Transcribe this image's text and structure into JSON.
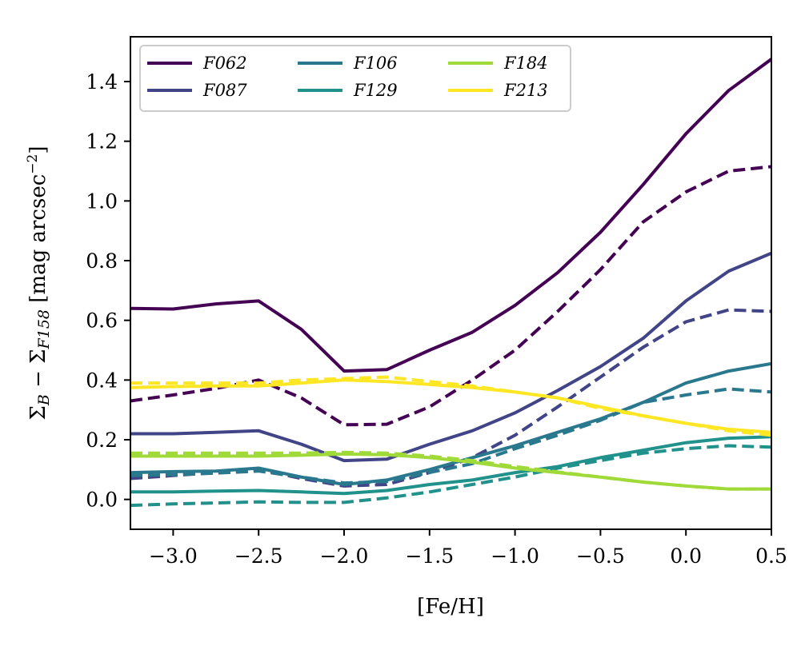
{
  "chart_data": {
    "type": "line",
    "title": "",
    "xlabel": "[Fe/H]",
    "ylabel": "Σ_B − Σ_F158 [mag arcsec^−2]",
    "ylabel_parts": {
      "main": "Σ",
      "sub1": "B",
      "minus": " − Σ",
      "sub2": "F158",
      "unit_open": " [mag arcsec",
      "sup": "−2",
      "unit_close": "]"
    },
    "xlim": [
      -3.25,
      0.5
    ],
    "ylim": [
      -0.1,
      1.55
    ],
    "xticks": [
      -3.0,
      -2.5,
      -2.0,
      -1.5,
      -1.0,
      -0.5,
      0.0,
      0.5
    ],
    "xtick_labels": [
      "−3.0",
      "−2.5",
      "−2.0",
      "−1.5",
      "−1.0",
      "−0.5",
      "0.0",
      "0.5"
    ],
    "yticks": [
      0.0,
      0.2,
      0.4,
      0.6,
      0.8,
      1.0,
      1.2,
      1.4
    ],
    "ytick_labels": [
      "0.0",
      "0.2",
      "0.4",
      "0.6",
      "0.8",
      "1.0",
      "1.2",
      "1.4"
    ],
    "legend_position": "top-left",
    "x": [
      -3.25,
      -3.0,
      -2.75,
      -2.5,
      -2.25,
      -2.0,
      -1.75,
      -1.5,
      -1.25,
      -1.0,
      -0.75,
      -0.5,
      -0.25,
      0.0,
      0.25,
      0.5
    ],
    "series": [
      {
        "name": "F062",
        "label": "F062",
        "color": "#440154",
        "style": "solid",
        "values": [
          0.64,
          0.638,
          0.655,
          0.665,
          0.57,
          0.43,
          0.435,
          0.5,
          0.56,
          0.65,
          0.76,
          0.895,
          1.055,
          1.225,
          1.37,
          1.475
        ]
      },
      {
        "name": "F062 (dashed)",
        "color": "#440154",
        "style": "dashed",
        "values": [
          0.33,
          0.35,
          0.372,
          0.4,
          0.34,
          0.25,
          0.252,
          0.31,
          0.4,
          0.5,
          0.63,
          0.77,
          0.93,
          1.03,
          1.1,
          1.115
        ]
      },
      {
        "name": "F087",
        "label": "F087",
        "color": "#414487",
        "style": "solid",
        "values": [
          0.22,
          0.22,
          0.225,
          0.23,
          0.185,
          0.13,
          0.135,
          0.185,
          0.23,
          0.29,
          0.365,
          0.445,
          0.54,
          0.665,
          0.765,
          0.825
        ]
      },
      {
        "name": "F087 (dashed)",
        "color": "#414487",
        "style": "dashed",
        "values": [
          0.07,
          0.08,
          0.09,
          0.1,
          0.07,
          0.045,
          0.05,
          0.09,
          0.14,
          0.215,
          0.31,
          0.41,
          0.51,
          0.595,
          0.635,
          0.63
        ]
      },
      {
        "name": "F106",
        "label": "F106",
        "color": "#2a788e",
        "style": "solid",
        "values": [
          0.09,
          0.093,
          0.095,
          0.105,
          0.075,
          0.05,
          0.065,
          0.1,
          0.14,
          0.18,
          0.225,
          0.27,
          0.325,
          0.39,
          0.43,
          0.455
        ]
      },
      {
        "name": "F106 (dashed)",
        "color": "#2a788e",
        "style": "dashed",
        "values": [
          0.08,
          0.083,
          0.088,
          0.095,
          0.075,
          0.055,
          0.06,
          0.09,
          0.12,
          0.17,
          0.215,
          0.265,
          0.325,
          0.35,
          0.37,
          0.36
        ]
      },
      {
        "name": "F129",
        "label": "F129",
        "color": "#21918c",
        "style": "solid",
        "values": [
          0.025,
          0.025,
          0.028,
          0.03,
          0.025,
          0.02,
          0.03,
          0.05,
          0.065,
          0.09,
          0.11,
          0.14,
          0.165,
          0.19,
          0.205,
          0.21
        ]
      },
      {
        "name": "F129 (dashed)",
        "color": "#21918c",
        "style": "dashed",
        "values": [
          -0.02,
          -0.015,
          -0.012,
          -0.008,
          -0.01,
          -0.01,
          0.005,
          0.025,
          0.05,
          0.075,
          0.105,
          0.13,
          0.155,
          0.17,
          0.18,
          0.175
        ]
      },
      {
        "name": "F184",
        "label": "F184",
        "color": "#a0da39",
        "style": "solid",
        "values": [
          0.145,
          0.145,
          0.145,
          0.145,
          0.148,
          0.152,
          0.15,
          0.14,
          0.125,
          0.105,
          0.09,
          0.075,
          0.058,
          0.045,
          0.035,
          0.035
        ]
      },
      {
        "name": "F184 (dashed)",
        "color": "#a0da39",
        "style": "dashed",
        "values": [
          0.155,
          0.155,
          0.155,
          0.155,
          0.155,
          0.158,
          0.155,
          0.145,
          0.13,
          0.11,
          0.092,
          0.075,
          0.058,
          0.045,
          0.035,
          0.035
        ]
      },
      {
        "name": "F213",
        "label": "F213",
        "color": "#fde725",
        "style": "solid",
        "values": [
          0.375,
          0.378,
          0.38,
          0.38,
          0.39,
          0.4,
          0.395,
          0.385,
          0.375,
          0.36,
          0.34,
          0.31,
          0.28,
          0.255,
          0.235,
          0.225
        ]
      },
      {
        "name": "F213 (dashed)",
        "color": "#fde725",
        "style": "dashed",
        "values": [
          0.39,
          0.39,
          0.39,
          0.39,
          0.4,
          0.405,
          0.41,
          0.395,
          0.38,
          0.36,
          0.34,
          0.305,
          0.28,
          0.255,
          0.23,
          0.215
        ]
      }
    ]
  }
}
